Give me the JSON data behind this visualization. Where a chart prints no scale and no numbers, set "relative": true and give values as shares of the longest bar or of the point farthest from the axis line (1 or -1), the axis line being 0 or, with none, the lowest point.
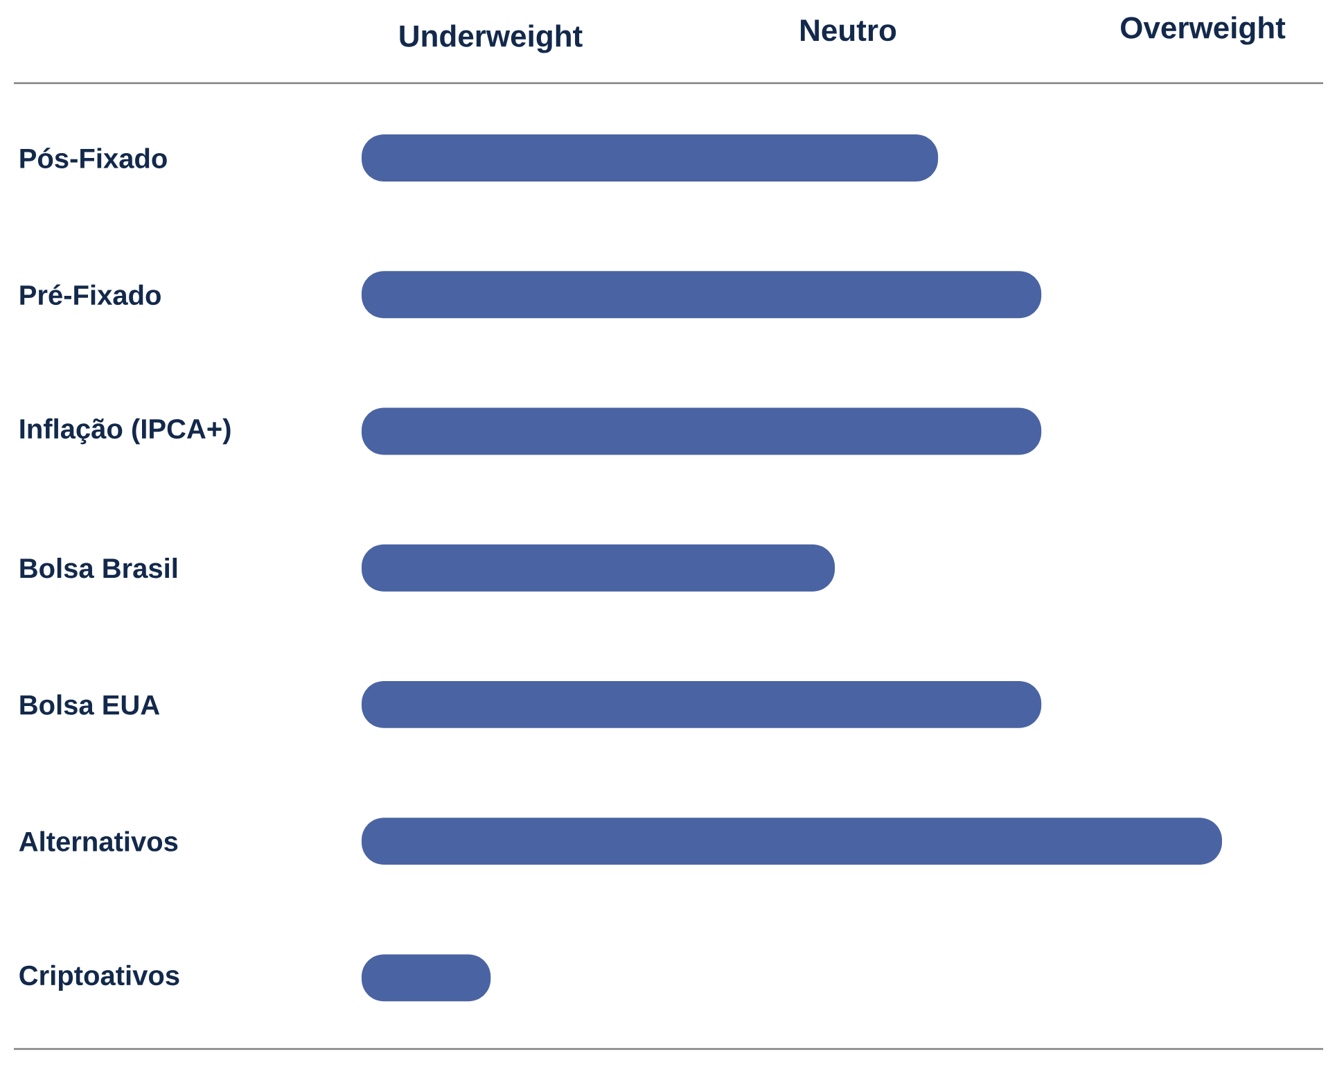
{
  "chart_data": {
    "type": "bar",
    "orientation": "horizontal",
    "relative": true,
    "categories": [
      "Pós-Fixado",
      "Pré-Fixado",
      "Inflação (IPCA+)",
      "Bolsa Brasil",
      "Bolsa EUA",
      "Alternativos",
      "Criptoativos"
    ],
    "values": [
      0.67,
      0.79,
      0.79,
      0.55,
      0.79,
      1,
      0.15
    ],
    "color": "#4a63a3",
    "annotations": [
      "Underweight",
      "Neutro",
      "Overweight"
    ]
  }
}
